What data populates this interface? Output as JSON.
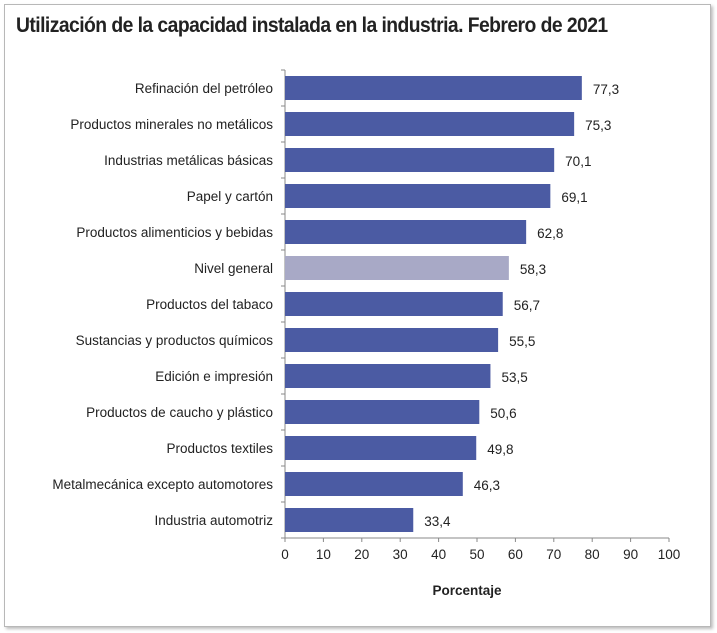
{
  "chart_data": {
    "type": "bar",
    "orientation": "horizontal",
    "title": "Utilización de la capacidad instalada en la industria. Febrero de 2021",
    "xlabel": "Porcentaje",
    "ylabel": "",
    "xlim": [
      0,
      100
    ],
    "xticks": [
      0,
      10,
      20,
      30,
      40,
      50,
      60,
      70,
      80,
      90,
      100
    ],
    "grid": false,
    "categories": [
      "Refinación del petróleo",
      "Productos minerales no metálicos",
      "Industrias metálicas básicas",
      "Papel y cartón",
      "Productos alimenticios y bebidas",
      "Nivel general",
      "Productos del tabaco",
      "Sustancias y productos químicos",
      "Edición e impresión",
      "Productos de caucho y plástico",
      "Productos textiles",
      "Metalmecánica excepto automotores",
      "Industria automotriz"
    ],
    "values": [
      77.3,
      75.3,
      70.1,
      69.1,
      62.8,
      58.3,
      56.7,
      55.5,
      53.5,
      50.6,
      49.8,
      46.3,
      33.4
    ],
    "value_labels": [
      "77,3",
      "75,3",
      "70,1",
      "69,1",
      "62,8",
      "58,3",
      "56,7",
      "55,5",
      "53,5",
      "50,6",
      "49,8",
      "46,3",
      "33,4"
    ],
    "highlight_category": "Nivel general",
    "colors": {
      "bar": "#4b5ba3",
      "highlight": "#a8a9c6"
    }
  }
}
